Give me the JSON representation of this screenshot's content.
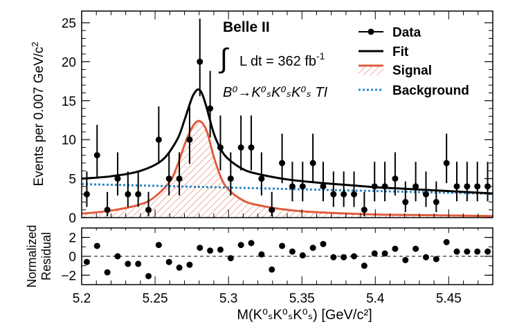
{
  "chart_data": [
    {
      "type": "scatter",
      "panel": "main",
      "ylabel": "Events per 0.007 GeV/c",
      "ylabel_sup": "2",
      "xlim": [
        5.2,
        5.48
      ],
      "ylim": [
        0,
        26.5
      ],
      "yticks": [
        "0",
        "5",
        "10",
        "15",
        "20",
        "25"
      ],
      "annotations": {
        "experiment": "Belle II",
        "lumi_integral": "∫",
        "lumi_text": "L dt = 362 fb",
        "lumi_sup": "-1",
        "decay": "B⁰→K⁰ₛK⁰ₛK⁰ₛ TI"
      },
      "legend": {
        "position": "top-right",
        "entries": [
          {
            "label": "Data",
            "style": "marker"
          },
          {
            "label": "Fit",
            "style": "line",
            "color": "#000000"
          },
          {
            "label": "Signal",
            "style": "hatched",
            "color": "#e05b3d"
          },
          {
            "label": "Background",
            "style": "dotted",
            "color": "#2a86c4"
          }
        ]
      },
      "series": [
        {
          "name": "Data",
          "x": [
            5.2035,
            5.2105,
            5.2175,
            5.2245,
            5.2315,
            5.2385,
            5.2455,
            5.2525,
            5.2595,
            5.2665,
            5.2735,
            5.2805,
            5.2875,
            5.2945,
            5.3015,
            5.3085,
            5.3155,
            5.3225,
            5.3295,
            5.3365,
            5.3435,
            5.3505,
            5.3575,
            5.3645,
            5.3715,
            5.3785,
            5.3855,
            5.3925,
            5.3995,
            5.4065,
            5.4135,
            5.4205,
            5.4275,
            5.4345,
            5.4415,
            5.4485,
            5.4555,
            5.4625,
            5.4695,
            5.4765
          ],
          "y": [
            3,
            8,
            1,
            5,
            3,
            3,
            1,
            10,
            5,
            5,
            10,
            20,
            14,
            9,
            5,
            9,
            9,
            5,
            1,
            7,
            4,
            4,
            7,
            4,
            3,
            3,
            3,
            1,
            4,
            4,
            5,
            2,
            4,
            3,
            2,
            7,
            4,
            4,
            4,
            4
          ],
          "yerr_lo": [
            1.63,
            2.77,
            0.83,
            2.16,
            1.63,
            1.63,
            0.83,
            3.11,
            2.16,
            2.16,
            3.11,
            4.44,
            3.7,
            2.94,
            2.16,
            2.94,
            2.94,
            2.16,
            0.83,
            2.58,
            1.91,
            1.91,
            2.58,
            1.91,
            1.63,
            1.63,
            1.63,
            0.83,
            1.91,
            1.91,
            2.16,
            1.29,
            1.91,
            1.63,
            1.29,
            2.58,
            1.91,
            1.91,
            1.91,
            1.91
          ],
          "yerr_hi": [
            2.92,
            3.9,
            2.3,
            3.38,
            2.92,
            2.92,
            2.3,
            4.27,
            3.38,
            3.38,
            4.27,
            5.55,
            4.83,
            4.11,
            3.38,
            4.11,
            4.11,
            3.38,
            2.3,
            3.77,
            3.16,
            3.16,
            3.77,
            3.16,
            2.92,
            2.92,
            2.92,
            2.3,
            3.16,
            3.16,
            3.38,
            2.64,
            3.16,
            2.92,
            2.64,
            3.77,
            3.16,
            3.16,
            3.16,
            3.16
          ]
        },
        {
          "name": "Fit",
          "x": [
            5.2,
            5.22,
            5.24,
            5.255,
            5.265,
            5.27,
            5.275,
            5.278,
            5.28,
            5.282,
            5.285,
            5.29,
            5.295,
            5.3,
            5.31,
            5.32,
            5.34,
            5.36,
            5.38,
            5.4,
            5.42,
            5.44,
            5.46,
            5.48
          ],
          "y": [
            5.0,
            5.3,
            6.0,
            7.4,
            10.0,
            12.5,
            15.3,
            16.3,
            16.4,
            15.9,
            14.2,
            10.8,
            8.7,
            7.5,
            6.2,
            5.6,
            4.9,
            4.5,
            4.2,
            3.9,
            3.7,
            3.5,
            3.3,
            3.1
          ]
        },
        {
          "name": "Signal",
          "x": [
            5.2,
            5.22,
            5.24,
            5.25,
            5.26,
            5.265,
            5.27,
            5.275,
            5.28,
            5.285,
            5.29,
            5.295,
            5.3,
            5.31,
            5.32,
            5.34,
            5.36,
            5.4,
            5.44,
            5.48
          ],
          "y": [
            0.5,
            0.9,
            1.7,
            2.7,
            4.6,
            6.6,
            9.3,
            11.5,
            12.4,
            11.2,
            7.8,
            5.1,
            3.6,
            2.2,
            1.6,
            1.0,
            0.7,
            0.4,
            0.3,
            0.2
          ]
        },
        {
          "name": "Background",
          "x": [
            5.2,
            5.48
          ],
          "y": [
            4.3,
            3.05
          ]
        }
      ]
    },
    {
      "type": "scatter",
      "panel": "residual",
      "ylabel": [
        "Normalized",
        "Residual"
      ],
      "xlabel": "M(K⁰ₛK⁰ₛK⁰ₛ) [GeV/c²]",
      "xlim": [
        5.2,
        5.48
      ],
      "ylim": [
        -3,
        3
      ],
      "yticks": [
        "−2",
        "0",
        "2"
      ],
      "xticks": [
        "5.2",
        "5.25",
        "5.3",
        "5.35",
        "5.4",
        "5.45"
      ],
      "xtick_values": [
        5.2,
        5.25,
        5.3,
        5.35,
        5.4,
        5.45
      ],
      "series": [
        {
          "name": "Normalized Residual",
          "x": [
            5.2035,
            5.2105,
            5.2175,
            5.2245,
            5.2315,
            5.2385,
            5.2455,
            5.2525,
            5.2595,
            5.2665,
            5.2735,
            5.2805,
            5.2875,
            5.2945,
            5.3015,
            5.3085,
            5.3155,
            5.3225,
            5.3295,
            5.3365,
            5.3435,
            5.3505,
            5.3575,
            5.3645,
            5.3715,
            5.3785,
            5.3855,
            5.3925,
            5.3995,
            5.4065,
            5.4135,
            5.4205,
            5.4275,
            5.4345,
            5.4415,
            5.4485,
            5.4555,
            5.4625,
            5.4695,
            5.4765
          ],
          "y": [
            -0.6,
            1.1,
            -1.7,
            0.0,
            -0.8,
            -0.8,
            -2.1,
            1.2,
            -0.6,
            -1.2,
            -0.9,
            0.9,
            0.6,
            0.7,
            -0.2,
            1.2,
            1.4,
            0.2,
            -1.4,
            1.1,
            0.5,
            0.1,
            0.9,
            1.3,
            -0.1,
            -0.1,
            0.0,
            -1.0,
            0.3,
            0.3,
            0.8,
            -0.4,
            0.8,
            -0.1,
            -0.3,
            1.5,
            0.5,
            0.5,
            0.5,
            0.5
          ]
        }
      ]
    }
  ]
}
